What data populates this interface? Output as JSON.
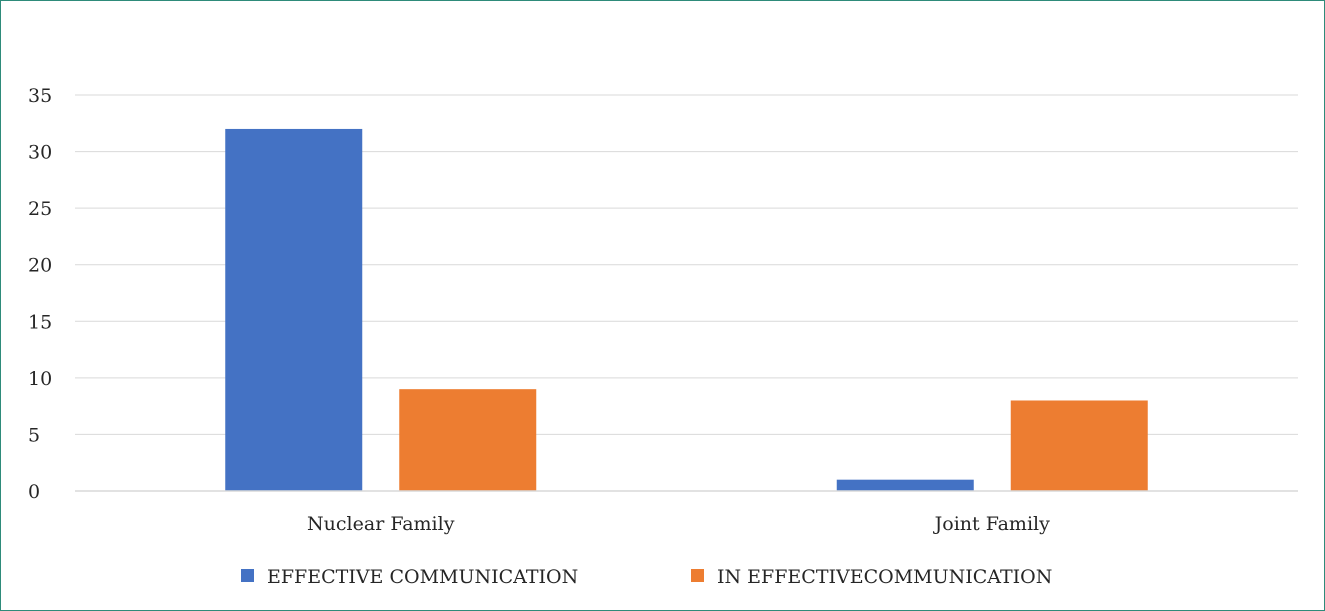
{
  "chart_data": {
    "type": "bar",
    "categories": [
      "Nuclear Family",
      "Joint Family"
    ],
    "series": [
      {
        "name": "EFFECTIVE COMMUNICATION",
        "values": [
          32,
          1
        ],
        "color": "#4472c4"
      },
      {
        "name": "IN EFFECTIVECOMMUNICATION",
        "values": [
          9,
          8
        ],
        "color": "#ed7d31"
      }
    ],
    "yticks": [
      "0",
      "5",
      "10",
      "15",
      "20",
      "25",
      "30",
      "35"
    ],
    "ylim": [
      0,
      35
    ],
    "grid": true,
    "legend_position": "bottom"
  }
}
